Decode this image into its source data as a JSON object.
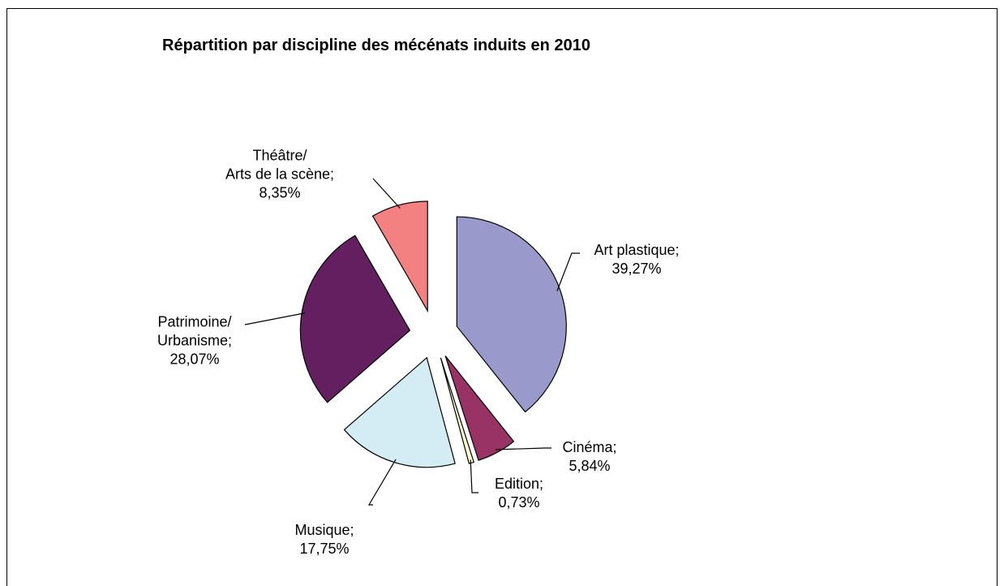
{
  "chart_data": {
    "type": "pie",
    "title": "Répartition par discipline des mécénats induits en 2010",
    "categories": [
      "Art plastique;",
      "Cinéma;",
      "Edition;",
      "Musique;",
      "Patrimoine/\nUrbanisme;",
      "Théâtre/\nArts de la scène;"
    ],
    "values": [
      39.27,
      5.84,
      0.73,
      17.75,
      28.07,
      8.35
    ],
    "value_labels": [
      "39,27%",
      "5,84%",
      "0,73%",
      "17,75%",
      "28,07%",
      "8,35%"
    ],
    "colors": [
      "#9999cc",
      "#993366",
      "#ffffcc",
      "#d4ecf4",
      "#641f61",
      "#f38181"
    ]
  }
}
